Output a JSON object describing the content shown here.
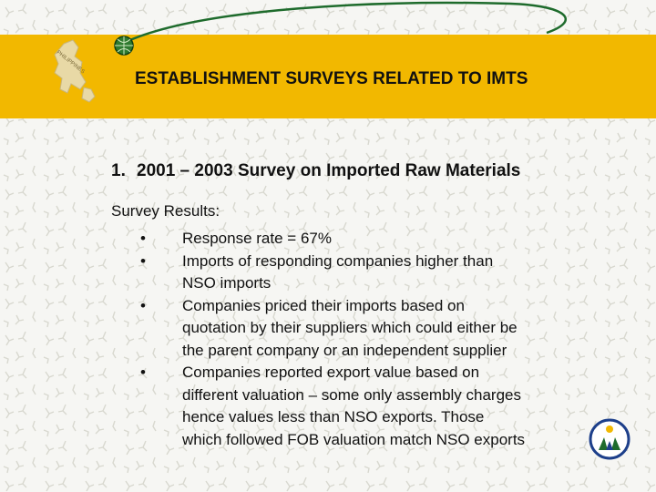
{
  "slide": {
    "title": "ESTABLISHMENT SURVEYS RELATED TO IMTS",
    "map_label": "PHILIPPINES",
    "heading_number": "1.",
    "heading_text": "2001 – 2003 Survey on Imported Raw Materials",
    "subheading": "Survey Results:",
    "bullet_symbol": "•",
    "bullets": [
      {
        "text": "Response rate = 67%"
      },
      {
        "text": "Imports of responding companies higher than\nNSO imports"
      },
      {
        "text": "Companies priced their imports based on\nquotation by their suppliers which could either be\nthe parent company or an independent supplier"
      },
      {
        "text": "Companies reported export value based on\ndifferent valuation – some only assembly charges\nhence values less than NSO exports.  Those\nwhich followed FOB valuation match NSO exports"
      }
    ]
  },
  "colors": {
    "banner": "#f2b800",
    "accent_green": "#1e6b2c",
    "background": "#f6f6f3"
  },
  "icons": [
    "philippines-map-icon",
    "globe-icon",
    "nso-logo-icon"
  ]
}
